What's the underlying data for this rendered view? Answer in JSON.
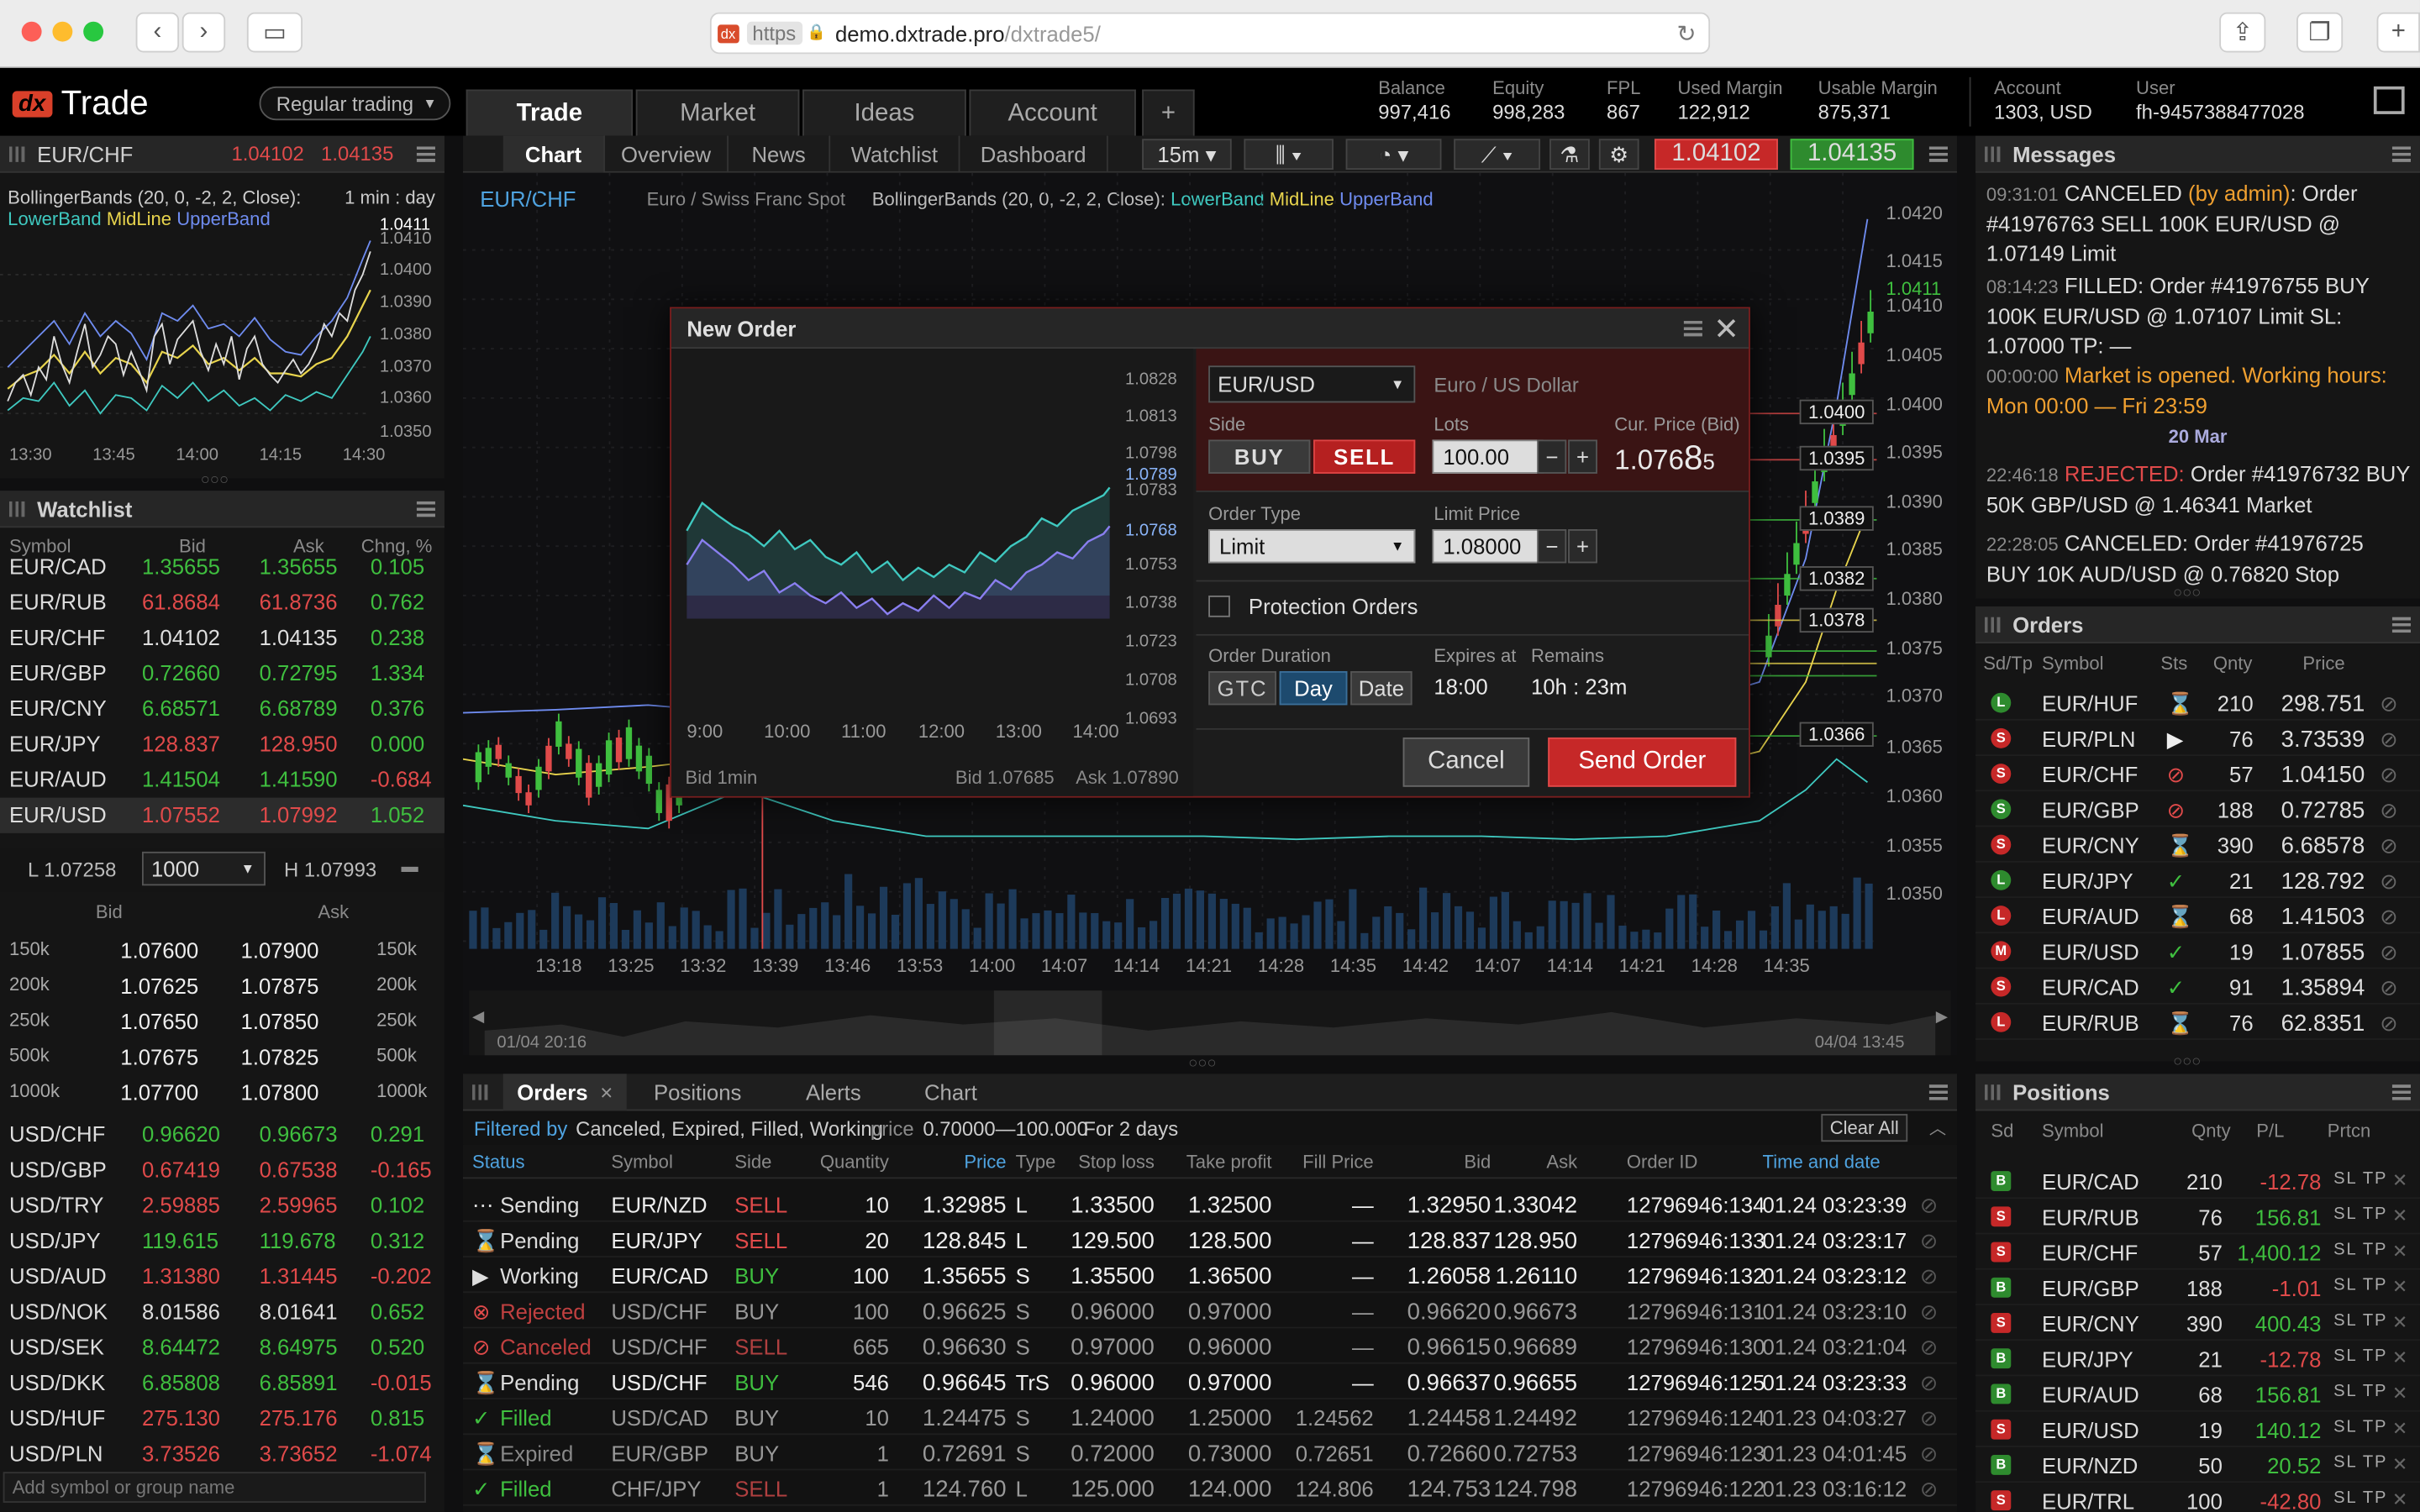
{
  "browser": {
    "url_scheme": "https",
    "url_domain": "demo.dxtrade.pro",
    "url_path": "/dxtrade5/"
  },
  "app": {
    "logo_text": "Trade",
    "logo_mark": "dx",
    "mode": "Regular trading"
  },
  "main_tabs": [
    "Trade",
    "Market",
    "Ideas",
    "Account",
    "+"
  ],
  "account": {
    "balance_label": "Balance",
    "balance": "997,416",
    "equity_label": "Equity",
    "equity": "998,283",
    "fpl_label": "FPL",
    "fpl": "867",
    "used_margin_label": "Used Margin",
    "used_margin": "122,912",
    "usable_margin_label": "Usable Margin",
    "usable_margin": "875,371",
    "account_label": "Account",
    "account": "1303, USD",
    "user_label": "User",
    "user": "fh-9457388477028"
  },
  "minichart": {
    "symbol": "EUR/CHF",
    "bid": "1.04102",
    "ask": "1.04135",
    "indicator": "BollingerBands (20, 0, -2, 2, Close):",
    "timeframe": "1 min : day",
    "legend": [
      "LowerBand",
      "MidLine",
      "UpperBand"
    ],
    "y_ticks": [
      "1.0411",
      "1.0410",
      "1.0400",
      "1.0390",
      "1.0380",
      "1.0370",
      "1.0360",
      "1.0350"
    ],
    "x_ticks": [
      "13:30",
      "13:45",
      "14:00",
      "14:15",
      "14:30"
    ]
  },
  "watchlist": {
    "title": "Watchlist",
    "cols": [
      "Symbol",
      "Bid",
      "Ask",
      "Chng, %"
    ],
    "rows": [
      [
        "EUR/CAD",
        "1.35655",
        "1.35655",
        "0.105"
      ],
      [
        "EUR/RUB",
        "61.8684",
        "61.8736",
        "0.762"
      ],
      [
        "EUR/CHF",
        "1.04102",
        "1.04135",
        "0.238"
      ],
      [
        "EUR/GBP",
        "0.72660",
        "0.72795",
        "1.334"
      ],
      [
        "EUR/CNY",
        "6.68571",
        "6.68789",
        "0.376"
      ],
      [
        "EUR/JPY",
        "128.837",
        "128.950",
        "0.000"
      ],
      [
        "EUR/AUD",
        "1.41504",
        "1.41590",
        "-0.684"
      ],
      [
        "EUR/USD",
        "1.07552",
        "1.07992",
        "1.052"
      ]
    ],
    "depth_low": "L 1.07258",
    "depth_qty": "1000",
    "depth_high": "H 1.07993",
    "depth_cols": [
      "Bid",
      "Ask"
    ],
    "depth": [
      [
        "150k",
        "1.07600",
        "1.07900",
        "150k"
      ],
      [
        "200k",
        "1.07625",
        "1.07875",
        "200k"
      ],
      [
        "250k",
        "1.07650",
        "1.07850",
        "250k"
      ],
      [
        "500k",
        "1.07675",
        "1.07825",
        "500k"
      ],
      [
        "1000k",
        "1.07700",
        "1.07800",
        "1000k"
      ]
    ],
    "rows2": [
      [
        "USD/CHF",
        "0.96620",
        "0.96673",
        "0.291"
      ],
      [
        "USD/GBP",
        "0.67419",
        "0.67538",
        "-0.165"
      ],
      [
        "USD/TRY",
        "2.59885",
        "2.59965",
        "0.102"
      ],
      [
        "USD/JPY",
        "119.615",
        "119.678",
        "0.312"
      ],
      [
        "USD/AUD",
        "1.31380",
        "1.31445",
        "-0.202"
      ],
      [
        "USD/NOK",
        "8.01586",
        "8.01641",
        "0.652"
      ],
      [
        "USD/SEK",
        "8.64472",
        "8.64975",
        "0.520"
      ],
      [
        "USD/DKK",
        "6.85808",
        "6.85891",
        "-0.015"
      ],
      [
        "USD/HUF",
        "275.130",
        "275.176",
        "0.815"
      ],
      [
        "USD/PLN",
        "3.73526",
        "3.73652",
        "-1.074"
      ]
    ],
    "add_placeholder": "Add symbol or group name"
  },
  "chart_tabs": [
    "Chart",
    "Overview",
    "News",
    "Watchlist",
    "Dashboard"
  ],
  "chart_toolbar": {
    "timeframe": "15m",
    "bid": "1.04102",
    "ask": "1.04135"
  },
  "mainchart": {
    "symbol": "EUR/CHF",
    "desc": "Euro / Swiss Franc Spot",
    "indicator": "BollingerBands (20, 0, -2, 2, Close):",
    "legend": [
      "LowerBand",
      "MidLine",
      "UpperBand"
    ],
    "y_ticks": [
      "1.0420",
      "1.0415",
      "1.0411",
      "1.0410",
      "1.0405",
      "1.0400",
      "1.0395",
      "1.0390",
      "1.0385",
      "1.0380",
      "1.0375",
      "1.0370",
      "1.0365",
      "1.0360",
      "1.0355",
      "1.0350"
    ],
    "price_tags": [
      "1.0400",
      "1.0395",
      "1.0389",
      "1.0382",
      "1.0378",
      "1.0366"
    ],
    "x_ticks": [
      "13:18",
      "13:25",
      "13:32",
      "13:39",
      "13:46",
      "13:53",
      "14:00",
      "14:07",
      "14:14",
      "14:21",
      "14:28",
      "14:35",
      "14:42",
      "14:07",
      "14:14",
      "14:21",
      "14:28",
      "14:35"
    ],
    "nav_start": "01/04 20:16",
    "nav_end": "04/04 13:45"
  },
  "dialog": {
    "title": "New Order",
    "symbol": "EUR/USD",
    "symbol_desc": "Euro / US Dollar",
    "side_label": "Side",
    "buy": "BUY",
    "sell": "SELL",
    "lots_label": "Lots",
    "lots": "100.00",
    "cur_price_label": "Cur. Price (Bid)",
    "cur_price_main": "1.076",
    "cur_price_big": "8",
    "cur_price_small": "5",
    "order_type_label": "Order Type",
    "order_type": "Limit",
    "limit_price_label": "Limit Price",
    "limit_price": "1.08000",
    "protection": "Protection Orders",
    "duration_label": "Order Duration",
    "gtc": "GTC",
    "day": "Day",
    "date": "Date",
    "expires_label": "Expires at",
    "expires": "18:00",
    "remains_label": "Remains",
    "remains": "10h : 23m",
    "cancel": "Cancel",
    "send": "Send Order",
    "chart_y": [
      "1.0828",
      "1.0813",
      "1.0798",
      "1.0789",
      "1.0783",
      "1.0768",
      "1.0753",
      "1.0738",
      "1.0723",
      "1.0708",
      "1.0693"
    ],
    "chart_x": [
      "9:00",
      "10:00",
      "11:00",
      "12:00",
      "13:00",
      "14:00"
    ],
    "chart_bid": "Bid  1min",
    "chart_bidv": "Bid  1.07685",
    "chart_askv": "Ask  1.07890"
  },
  "messages": {
    "title": "Messages",
    "items": [
      {
        "time": "09:31:01",
        "pre": "CANCELED",
        "mid": " (by admin)",
        "text": ": Order #41976763  SELL 100K  EUR/USD @ 1.07149 Limit",
        "kind": "cancel"
      },
      {
        "time": "08:14:23",
        "pre": "FILLED: Order #41976755  BUY 100K  EUR/USD @ 1.07107  Limit  SL: 1.07000  TP: —",
        "mid": "",
        "text": "",
        "kind": "plain"
      },
      {
        "time": "00:00:00",
        "pre": "Market is opened. Working hours: Mon 00:00 — Fri 23:59",
        "mid": "",
        "text": "",
        "kind": "market"
      }
    ],
    "date_sep": "20 Mar",
    "items2": [
      {
        "time": "22:46:18",
        "pre": "REJECTED:",
        "text": " Order #41976732 BUY 50K  GBP/USD @ 1.46341 Market",
        "kind": "reject"
      },
      {
        "time": "22:28:05",
        "pre": "CANCELED:",
        "text": " Order #41976725 BUY 10K  AUD/USD @ 0.76820 Stop",
        "kind": "plain"
      }
    ]
  },
  "orders_side": {
    "title": "Orders",
    "cols": [
      "Sd/Tp",
      "Symbol",
      "Sts",
      "Qnty",
      "Price"
    ],
    "rows": [
      [
        "L",
        "EUR/HUF",
        "210",
        "298.751",
        "g",
        "hourglass"
      ],
      [
        "S",
        "EUR/PLN",
        "76",
        "3.73539",
        "r",
        "play"
      ],
      [
        "S",
        "EUR/CHF",
        "57",
        "1.04150",
        "r",
        "ban"
      ],
      [
        "S",
        "EUR/GBP",
        "188",
        "0.72785",
        "g",
        "ban"
      ],
      [
        "S",
        "EUR/CNY",
        "390",
        "6.68578",
        "r",
        "hourglass"
      ],
      [
        "L",
        "EUR/JPY",
        "21",
        "128.792",
        "g",
        "check"
      ],
      [
        "L",
        "EUR/AUD",
        "68",
        "1.41503",
        "r",
        "hourglass"
      ],
      [
        "M",
        "EUR/USD",
        "19",
        "1.07855",
        "r",
        "check"
      ],
      [
        "S",
        "EUR/CAD",
        "91",
        "1.35894",
        "r",
        "check"
      ],
      [
        "L",
        "EUR/RUB",
        "76",
        "62.8351",
        "r",
        "hourglass"
      ]
    ]
  },
  "positions": {
    "title": "Positions",
    "cols": [
      "Sd",
      "Symbol",
      "Qnty",
      "P/L",
      "Prtcn"
    ],
    "sltp": "SL TP",
    "rows": [
      [
        "B",
        "EUR/CAD",
        "210",
        "-12.78"
      ],
      [
        "S",
        "EUR/RUB",
        "76",
        "156.81"
      ],
      [
        "S",
        "EUR/CHF",
        "57",
        "1,400.12"
      ],
      [
        "B",
        "EUR/GBP",
        "188",
        "-1.01"
      ],
      [
        "S",
        "EUR/CNY",
        "390",
        "400.43"
      ],
      [
        "B",
        "EUR/JPY",
        "21",
        "-12.78"
      ],
      [
        "B",
        "EUR/AUD",
        "68",
        "156.81"
      ],
      [
        "S",
        "EUR/USD",
        "19",
        "140.12"
      ],
      [
        "B",
        "EUR/NZD",
        "50",
        "20.52"
      ],
      [
        "S",
        "EUR/TRL",
        "100",
        "-42.80"
      ]
    ]
  },
  "orders_tabs": [
    "Orders",
    "Positions",
    "Alerts",
    "Chart"
  ],
  "orders_filter": {
    "label": "Filtered by",
    "statuses": "Canceled, Expired, Filled, Working",
    "price_label": "price",
    "price": "0.70000—100.000",
    "period": "For 2 days",
    "clear": "Clear All"
  },
  "orders_cols": [
    "Status",
    "Symbol",
    "Side",
    "Quantity",
    "Price",
    "Type",
    "Stop loss",
    "Take profit",
    "Fill Price",
    "Bid",
    "Ask",
    "Order ID",
    "Time and date"
  ],
  "orders_rows": [
    [
      "Sending",
      "EUR/NZD",
      "SELL",
      "10",
      "1.32985",
      "L",
      "1.33500",
      "1.32500",
      "—",
      "1.32950",
      "1.33042",
      "12796946:134",
      "01.24 03:23:39"
    ],
    [
      "Pending",
      "EUR/JPY",
      "SELL",
      "20",
      "128.845",
      "L",
      "129.500",
      "128.500",
      "—",
      "128.837",
      "128.950",
      "12796946:133",
      "01.24 03:23:17"
    ],
    [
      "Working",
      "EUR/CAD",
      "BUY",
      "100",
      "1.35655",
      "S",
      "1.35500",
      "1.36500",
      "—",
      "1.26058",
      "1.26110",
      "12796946:132",
      "01.24 03:23:12"
    ],
    [
      "Rejected",
      "USD/CHF",
      "BUY",
      "100",
      "0.96625",
      "S",
      "0.96000",
      "0.97000",
      "—",
      "0.96620",
      "0.96673",
      "12796946:131",
      "01.24 03:23:10"
    ],
    [
      "Canceled",
      "USD/CHF",
      "SELL",
      "665",
      "0.96630",
      "S",
      "0.97000",
      "0.96000",
      "—",
      "0.96615",
      "0.96689",
      "12796946:130",
      "01.24 03:21:04"
    ],
    [
      "Pending",
      "USD/CHF",
      "BUY",
      "546",
      "0.96645",
      "TrS",
      "0.96000",
      "0.97000",
      "—",
      "0.96637",
      "0.96655",
      "12796946:125",
      "01.24 03:23:33"
    ],
    [
      "Filled",
      "USD/CAD",
      "BUY",
      "10",
      "1.24475",
      "S",
      "1.24000",
      "1.25000",
      "1.24562",
      "1.24458",
      "1.24492",
      "12796946:124",
      "01.23 04:03:27"
    ],
    [
      "Expired",
      "EUR/GBP",
      "BUY",
      "1",
      "0.72691",
      "S",
      "0.72000",
      "0.73000",
      "0.72651",
      "0.72660",
      "0.72753",
      "12796946:123",
      "01.23 04:01:45"
    ],
    [
      "Filled",
      "CHF/JPY",
      "SELL",
      "1",
      "124.760",
      "L",
      "125.000",
      "124.000",
      "124.806",
      "124.753",
      "124.798",
      "12796946:122",
      "01.23 03:16:12"
    ]
  ]
}
